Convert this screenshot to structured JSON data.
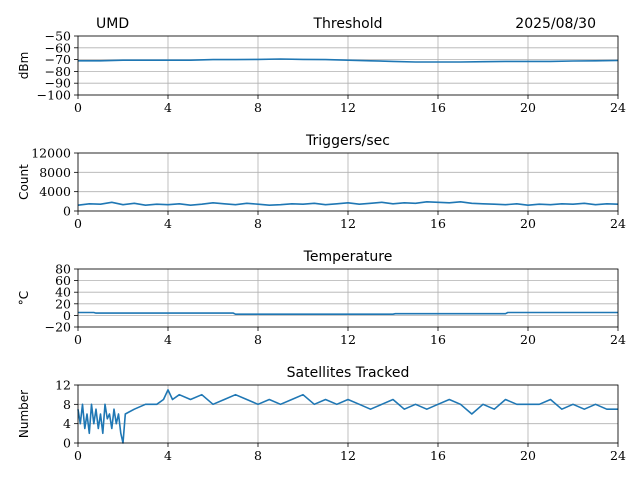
{
  "header": {
    "left": "UMD",
    "right": "2025/08/30"
  },
  "colors": {
    "series": "#1f77b4"
  },
  "chart_data": [
    {
      "type": "line",
      "title": "Threshold",
      "xlabel": "",
      "ylabel": "dBm",
      "xlim": [
        0,
        24
      ],
      "ylim": [
        -100,
        -50
      ],
      "xticks": [
        0,
        4,
        8,
        12,
        16,
        20,
        24
      ],
      "yticks": [
        -100,
        -90,
        -80,
        -70,
        -60,
        -50
      ],
      "ytick_labels": [
        "−100",
        "−90",
        "−80",
        "−70",
        "−60",
        "−50"
      ],
      "grid": true,
      "series": [
        {
          "x": [
            0,
            1,
            2,
            3,
            4,
            5,
            6,
            7,
            8,
            9,
            10,
            11,
            12,
            13,
            14,
            15,
            16,
            17,
            18,
            19,
            20,
            21,
            22,
            23,
            24
          ],
          "values": [
            -71,
            -71,
            -70.5,
            -70.5,
            -70.5,
            -70.5,
            -70,
            -70,
            -69.8,
            -69.5,
            -69.8,
            -70,
            -70.5,
            -71,
            -71.5,
            -72,
            -72,
            -72,
            -71.8,
            -71.5,
            -71.5,
            -71.5,
            -71.2,
            -71,
            -70.8
          ]
        }
      ]
    },
    {
      "type": "line",
      "title": "Triggers/sec",
      "xlabel": "",
      "ylabel": "Count",
      "xlim": [
        0,
        24
      ],
      "ylim": [
        0,
        12000
      ],
      "xticks": [
        0,
        4,
        8,
        12,
        16,
        20,
        24
      ],
      "yticks": [
        0,
        4000,
        8000,
        12000
      ],
      "ytick_labels": [
        "0",
        "4000",
        "8000",
        "12000"
      ],
      "grid": true,
      "series": [
        {
          "x": [
            0,
            0.5,
            1,
            1.5,
            2,
            2.5,
            3,
            3.5,
            4,
            4.5,
            5,
            5.5,
            6,
            6.5,
            7,
            7.5,
            8,
            8.5,
            9,
            9.5,
            10,
            10.5,
            11,
            11.5,
            12,
            12.5,
            13,
            13.5,
            14,
            14.5,
            15,
            15.5,
            16,
            16.5,
            17,
            17.5,
            18,
            18.5,
            19,
            19.5,
            20,
            20.5,
            21,
            21.5,
            22,
            22.5,
            23,
            23.5,
            24
          ],
          "values": [
            1200,
            1500,
            1400,
            1800,
            1300,
            1600,
            1200,
            1400,
            1300,
            1500,
            1200,
            1400,
            1700,
            1500,
            1300,
            1600,
            1400,
            1200,
            1300,
            1500,
            1400,
            1600,
            1300,
            1500,
            1700,
            1400,
            1600,
            1800,
            1500,
            1700,
            1600,
            1900,
            1800,
            1700,
            1900,
            1600,
            1500,
            1400,
            1300,
            1500,
            1200,
            1400,
            1300,
            1500,
            1400,
            1600,
            1300,
            1500,
            1400
          ]
        }
      ]
    },
    {
      "type": "line",
      "title": "Temperature",
      "xlabel": "",
      "ylabel": "°C",
      "xlim": [
        0,
        24
      ],
      "ylim": [
        -20,
        80
      ],
      "xticks": [
        0,
        4,
        8,
        12,
        16,
        20,
        24
      ],
      "yticks": [
        -20,
        0,
        20,
        40,
        60,
        80
      ],
      "ytick_labels": [
        "−20",
        "0",
        "20",
        "40",
        "60",
        "80"
      ],
      "grid": true,
      "series": [
        {
          "x": [
            0,
            0.7,
            0.8,
            6.9,
            7.0,
            14,
            14.1,
            19,
            19.1,
            24
          ],
          "values": [
            5,
            5,
            4,
            4,
            2,
            2,
            3,
            3,
            5,
            5
          ]
        }
      ]
    },
    {
      "type": "line",
      "title": "Satellites Tracked",
      "xlabel": "",
      "ylabel": "Number",
      "xlim": [
        0,
        24
      ],
      "ylim": [
        0,
        12
      ],
      "xticks": [
        0,
        4,
        8,
        12,
        16,
        20,
        24
      ],
      "yticks": [
        0,
        4,
        8,
        12
      ],
      "ytick_labels": [
        "0",
        "4",
        "8",
        "12"
      ],
      "grid": true,
      "series": [
        {
          "x": [
            0,
            0.1,
            0.2,
            0.3,
            0.4,
            0.5,
            0.6,
            0.7,
            0.8,
            0.9,
            1.0,
            1.1,
            1.2,
            1.3,
            1.4,
            1.5,
            1.6,
            1.7,
            1.8,
            1.9,
            2.0,
            2.1,
            2.5,
            3.0,
            3.5,
            3.8,
            4.0,
            4.2,
            4.5,
            5.0,
            5.5,
            6.0,
            6.5,
            7.0,
            7.5,
            8.0,
            8.5,
            9.0,
            9.5,
            10.0,
            10.5,
            11.0,
            11.5,
            12.0,
            12.5,
            13.0,
            13.5,
            14.0,
            14.5,
            15.0,
            15.5,
            16.0,
            16.5,
            17.0,
            17.5,
            18.0,
            18.5,
            19.0,
            19.5,
            20.0,
            20.5,
            21.0,
            21.5,
            22.0,
            22.5,
            23.0,
            23.5,
            24.0
          ],
          "values": [
            7,
            4,
            8,
            3,
            6,
            2,
            8,
            4,
            7,
            3,
            6,
            2,
            8,
            5,
            6,
            3,
            7,
            4,
            6,
            2,
            0,
            6,
            7,
            8,
            8,
            9,
            11,
            9,
            10,
            9,
            10,
            8,
            9,
            10,
            9,
            8,
            9,
            8,
            9,
            10,
            8,
            9,
            8,
            9,
            8,
            7,
            8,
            9,
            7,
            8,
            7,
            8,
            9,
            8,
            6,
            8,
            7,
            9,
            8,
            8,
            8,
            9,
            7,
            8,
            7,
            8,
            7,
            7
          ]
        }
      ]
    }
  ]
}
